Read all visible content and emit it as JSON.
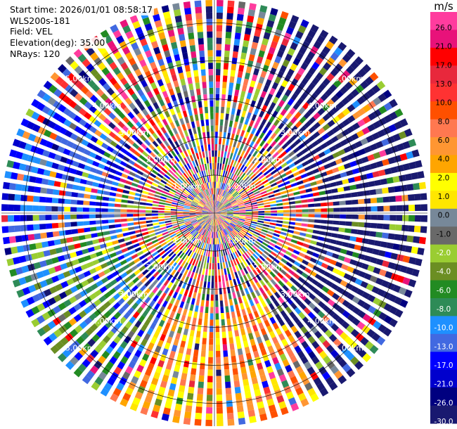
{
  "chart_data": {
    "type": "polar-ppi",
    "header": {
      "start_time": "Start time: 2026/01/01 08:58:17",
      "instrument": "WLS200s-181",
      "field": "Field: VEL",
      "elevation": "Elevation(deg): 35.00",
      "nrays": "NRays: 120"
    },
    "n_rays": 120,
    "range_rings_km": [
      1.0,
      2.0,
      3.0,
      4.0,
      5.0
    ],
    "range_ring_labels": [
      "1.00km",
      "2.00km",
      "3.00km",
      "4.00km",
      "5.00km"
    ],
    "max_range_km": 5.6,
    "colorbar": {
      "unit": "m/s",
      "tick_labels": [
        "26.0",
        "21.0",
        "17.0",
        "13.0",
        "10.0",
        "8.0",
        "6.0",
        "4.0",
        "2.0",
        "1.0",
        "0.0",
        "-1.0",
        "-2.0",
        "-4.0",
        "-6.0",
        "-8.0",
        "-10.0",
        "-13.0",
        "-17.0",
        "-21.0",
        "-26.0",
        "-30.0"
      ],
      "colors": [
        "#ff3c9e",
        "#e8127a",
        "#ff0000",
        "#e8283c",
        "#ff3232",
        "#ff5000",
        "#ff7850",
        "#ff9632",
        "#ffa500",
        "#ffff00",
        "#ffe600",
        "#778899",
        "#696969",
        "#9acd32",
        "#6b8e23",
        "#228b22",
        "#2e8b57",
        "#1e90ff",
        "#4169e1",
        "#0000ff",
        "#0000cd",
        "#000080",
        "#191970"
      ]
    }
  }
}
